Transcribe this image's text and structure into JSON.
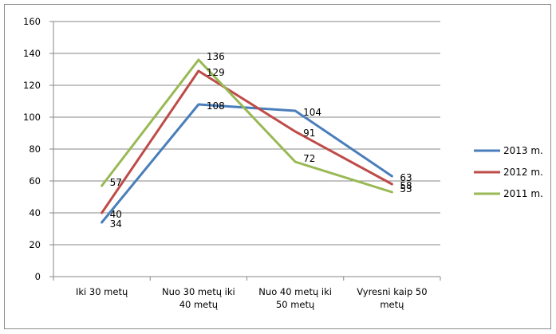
{
  "chart_data": {
    "type": "line",
    "categories": [
      [
        "Iki 30 metų"
      ],
      [
        "Nuo 30 metų iki",
        "40 metų"
      ],
      [
        "Nuo 40 metų iki",
        "50 metų"
      ],
      [
        "Vyresni kaip 50",
        "metų"
      ]
    ],
    "series": [
      {
        "name": "2013 m.",
        "color": "#4a7ebb",
        "values": [
          34,
          108,
          104,
          63
        ]
      },
      {
        "name": "2012 m.",
        "color": "#be4b48",
        "values": [
          40,
          129,
          91,
          58
        ]
      },
      {
        "name": "2011 m.",
        "color": "#98b954",
        "values": [
          57,
          136,
          72,
          53
        ]
      }
    ],
    "ylim": [
      0,
      160
    ],
    "yticks": [
      "0",
      "20",
      "40",
      "60",
      "80",
      "100",
      "120",
      "140",
      "160"
    ],
    "grid": true,
    "legend_position": "right"
  }
}
